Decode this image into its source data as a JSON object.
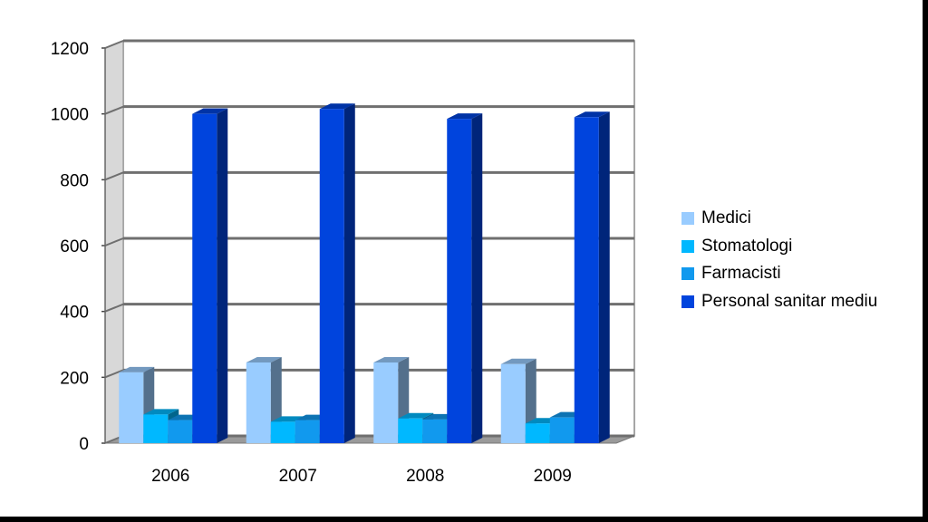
{
  "chart_data": {
    "type": "bar",
    "style": "3d-clustered-column",
    "categories": [
      "2006",
      "2007",
      "2008",
      "2009"
    ],
    "series": [
      {
        "name": "Medici",
        "color": "#99ccff",
        "values": [
          215,
          245,
          245,
          240
        ]
      },
      {
        "name": "Stomatologi",
        "color": "#00b8ff",
        "values": [
          87,
          65,
          75,
          60
        ]
      },
      {
        "name": "Farmacisti",
        "color": "#1199ee",
        "values": [
          70,
          70,
          72,
          78
        ]
      },
      {
        "name": "Personal sanitar mediu",
        "color": "#0044dd",
        "values": [
          1000,
          1015,
          985,
          990
        ]
      }
    ],
    "ylim": [
      0,
      1200
    ],
    "yticks": [
      "0",
      "200",
      "400",
      "600",
      "800",
      "1000",
      "1200"
    ],
    "grid": true,
    "legend_position": "right",
    "title": "",
    "xlabel": "",
    "ylabel": ""
  }
}
